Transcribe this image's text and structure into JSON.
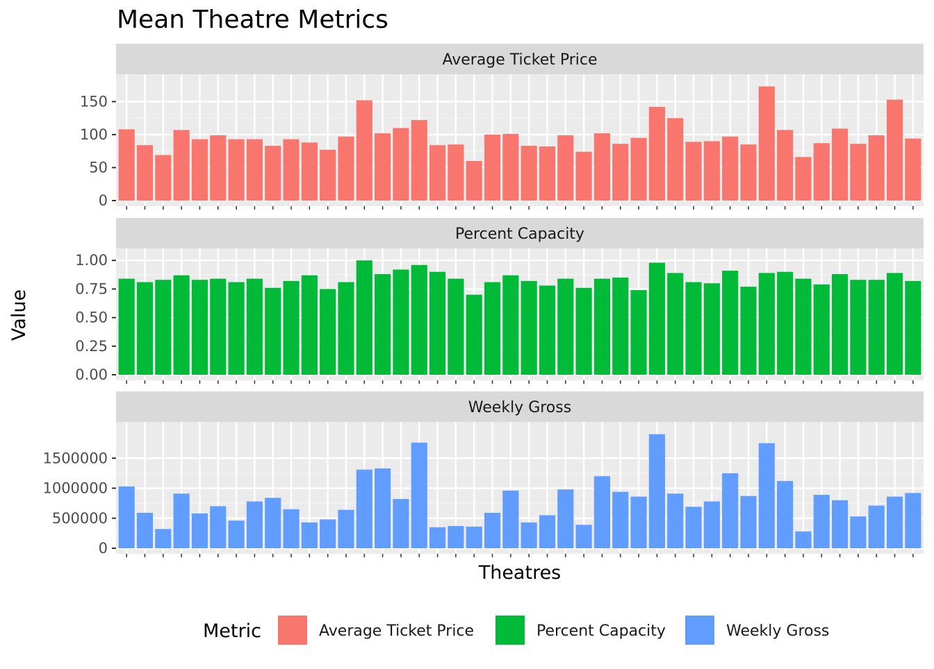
{
  "chart_data": {
    "type": "bar",
    "title": "Mean Theatre Metrics",
    "xlabel": "Theatres",
    "ylabel": "Value",
    "legend": {
      "title": "Metric",
      "placement": "bottom",
      "entries": [
        {
          "label": "Average Ticket Price",
          "color": "#F8766D"
        },
        {
          "label": "Percent Capacity",
          "color": "#00BA38"
        },
        {
          "label": "Weekly Gross",
          "color": "#619CFF"
        }
      ]
    },
    "grid": true,
    "x_tick_labels_shown": false,
    "panels": [
      {
        "name": "Average Ticket Price",
        "color": "#F8766D",
        "ylim": [
          0,
          182
        ],
        "yticks": [
          0,
          50,
          100,
          150
        ],
        "ytick_labels": [
          "0",
          "50",
          "100",
          "150"
        ],
        "values": [
          108,
          84,
          69,
          107,
          93,
          99,
          93,
          93,
          83,
          93,
          88,
          77,
          97,
          152,
          102,
          110,
          122,
          84,
          85,
          60,
          100,
          101,
          83,
          82,
          99,
          74,
          102,
          86,
          95,
          142,
          125,
          89,
          90,
          97,
          85,
          173,
          107,
          66,
          87,
          109,
          86,
          99,
          153,
          94
        ]
      },
      {
        "name": "Percent Capacity",
        "color": "#00BA38",
        "ylim": [
          0,
          1.05
        ],
        "yticks": [
          0,
          0.25,
          0.5,
          0.75,
          1.0
        ],
        "ytick_labels": [
          "0.00",
          "0.25",
          "0.50",
          "0.75",
          "1.00"
        ],
        "values": [
          0.84,
          0.81,
          0.83,
          0.87,
          0.83,
          0.84,
          0.81,
          0.84,
          0.76,
          0.82,
          0.87,
          0.75,
          0.81,
          1.0,
          0.88,
          0.92,
          0.96,
          0.9,
          0.84,
          0.7,
          0.81,
          0.87,
          0.82,
          0.78,
          0.84,
          0.76,
          0.84,
          0.85,
          0.74,
          0.98,
          0.89,
          0.81,
          0.8,
          0.91,
          0.77,
          0.89,
          0.9,
          0.84,
          0.79,
          0.88,
          0.83,
          0.83,
          0.89,
          0.82
        ]
      },
      {
        "name": "Weekly Gross",
        "color": "#619CFF",
        "ylim": [
          0,
          2000000
        ],
        "yticks": [
          0,
          500000,
          1000000,
          1500000
        ],
        "ytick_labels": [
          "0",
          "500000",
          "1000000",
          "1500000"
        ],
        "values": [
          1030000,
          590000,
          320000,
          910000,
          580000,
          700000,
          460000,
          780000,
          840000,
          650000,
          430000,
          480000,
          640000,
          1310000,
          1330000,
          820000,
          1760000,
          350000,
          370000,
          360000,
          590000,
          960000,
          430000,
          550000,
          980000,
          390000,
          1200000,
          940000,
          860000,
          1900000,
          910000,
          690000,
          780000,
          1250000,
          870000,
          1750000,
          1120000,
          280000,
          890000,
          800000,
          530000,
          710000,
          860000,
          920000
        ]
      }
    ]
  }
}
